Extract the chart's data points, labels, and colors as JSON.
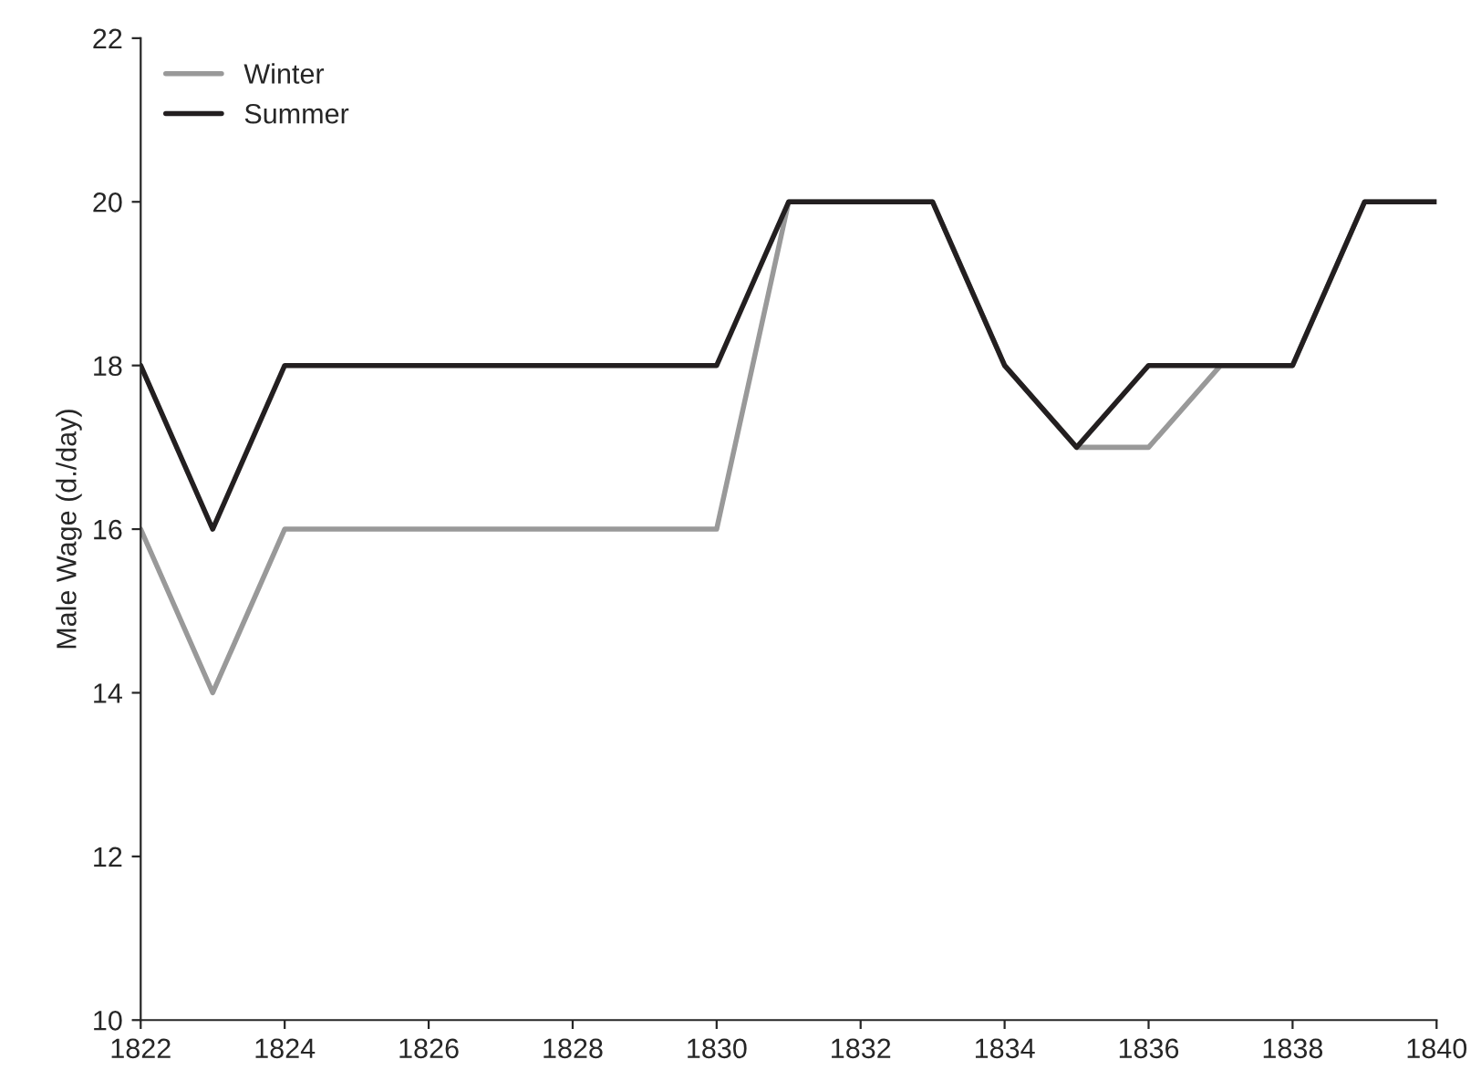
{
  "chart_data": {
    "type": "line",
    "ylabel": "Male Wage (d./day)",
    "x": [
      1822,
      1823,
      1824,
      1825,
      1826,
      1827,
      1828,
      1829,
      1830,
      1831,
      1832,
      1833,
      1834,
      1835,
      1836,
      1837,
      1838,
      1839,
      1840
    ],
    "series": [
      {
        "name": "Winter",
        "color": "#999999",
        "values": [
          16,
          14,
          16,
          16,
          16,
          16,
          16,
          16,
          16,
          20,
          20,
          20,
          18,
          17,
          17,
          18,
          18,
          20,
          20
        ]
      },
      {
        "name": "Summer",
        "color": "#231f20",
        "values": [
          18,
          16,
          18,
          18,
          18,
          18,
          18,
          18,
          18,
          20,
          20,
          20,
          18,
          17,
          18,
          18,
          18,
          20,
          20
        ]
      }
    ],
    "xlim": [
      1822,
      1840
    ],
    "xticks": [
      1822,
      1824,
      1826,
      1828,
      1830,
      1832,
      1834,
      1836,
      1838,
      1840
    ],
    "ylim": [
      10,
      22
    ],
    "yticks": [
      10,
      12,
      14,
      16,
      18,
      20,
      22
    ],
    "legend": "top left",
    "grid": false,
    "marker": "none",
    "line_style": "solid"
  }
}
